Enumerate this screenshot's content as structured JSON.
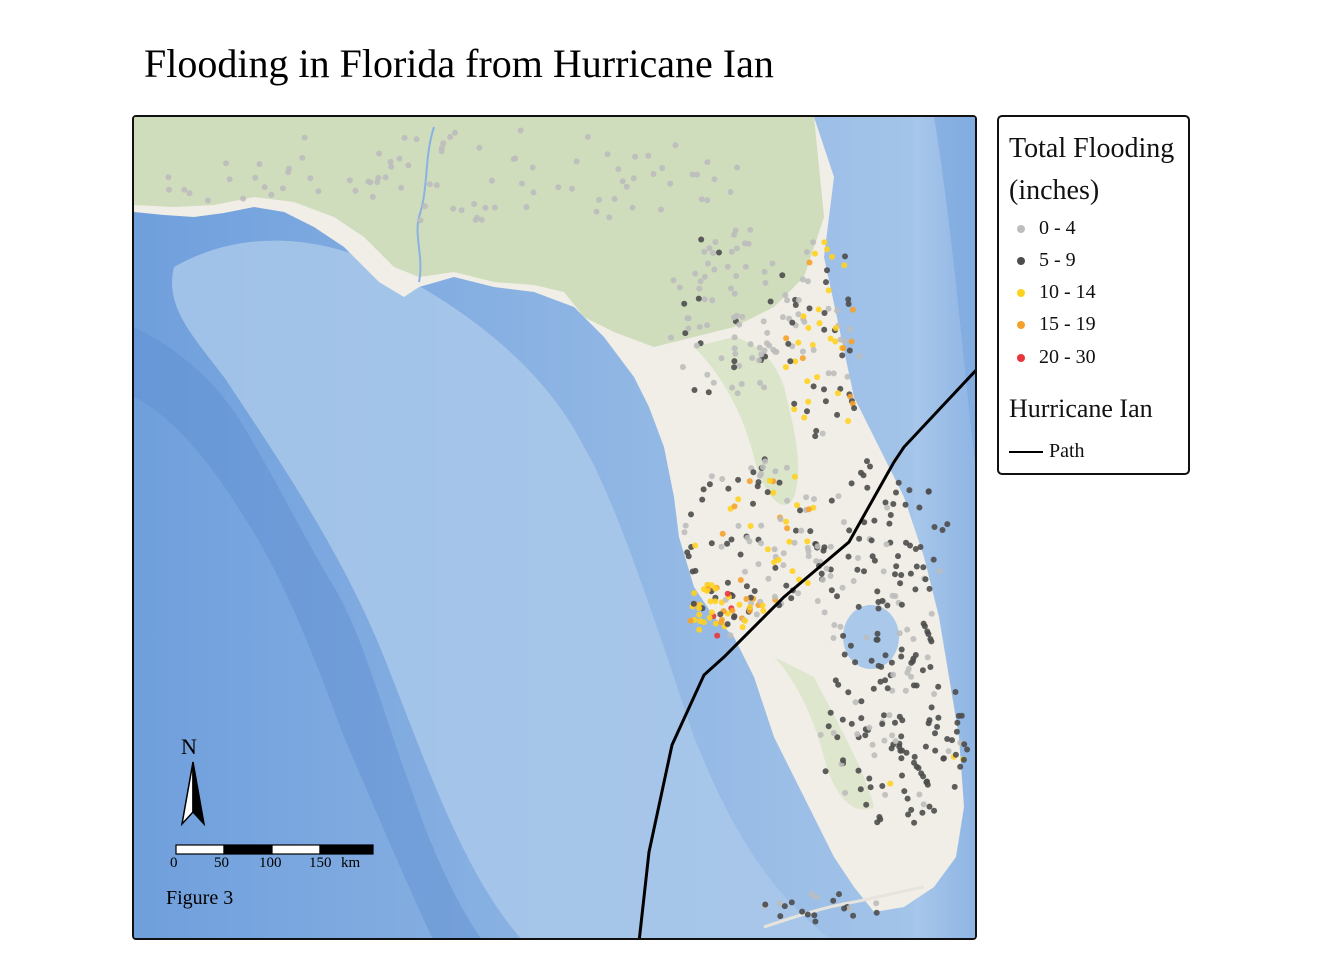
{
  "title": "Flooding in Florida from Hurricane Ian",
  "legend": {
    "title_line1": "Total Flooding",
    "title_line2": "(inches)",
    "classes": [
      {
        "label": "0 - 4",
        "color": "#bdbdbd"
      },
      {
        "label": "5 - 9",
        "color": "#4d4d4d"
      },
      {
        "label": "10 - 14",
        "color": "#ffd21f"
      },
      {
        "label": "15 - 19",
        "color": "#f6a12b"
      },
      {
        "label": "20 - 30",
        "color": "#e8363c"
      }
    ],
    "track_title": "Hurricane Ian",
    "track_label": "Path"
  },
  "north_arrow": {
    "label": "N"
  },
  "scale_bar": {
    "ticks": [
      "0",
      "50",
      "100",
      "150"
    ],
    "unit": "km"
  },
  "figure_label": "Figure 3",
  "colors": {
    "water_deep": "#6f9fdc",
    "water": "#a9c8ea",
    "land": "#f0eee6",
    "vegetation": "#c9d9b4",
    "track": "#000000"
  }
}
